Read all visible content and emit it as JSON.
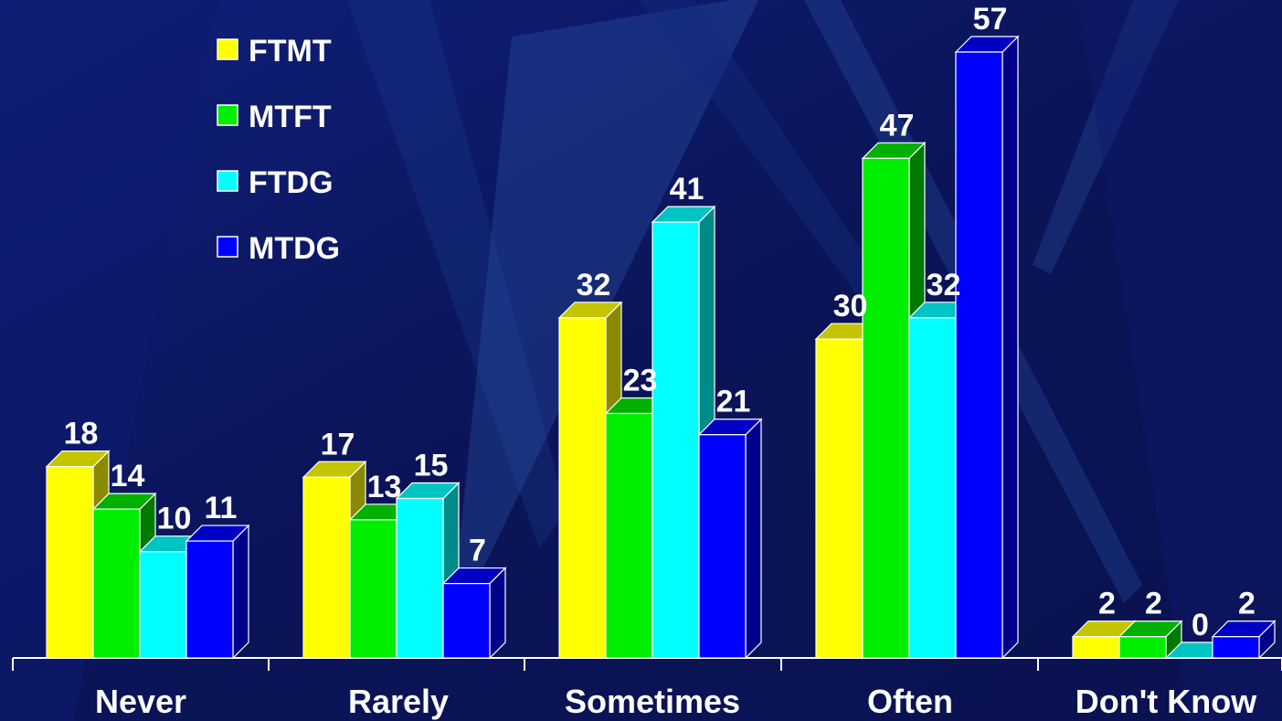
{
  "chart_data": {
    "type": "bar",
    "style": "3d-clustered-column",
    "categories": [
      "Never",
      "Rarely",
      "Sometimes",
      "Often",
      "Don't Know"
    ],
    "series": [
      {
        "name": "FTMT",
        "color": "#ffff00",
        "side_color": "#8a8a00",
        "top_color": "#c4c400",
        "values": [
          18,
          17,
          32,
          30,
          2
        ]
      },
      {
        "name": "MTFT",
        "color": "#00ee00",
        "side_color": "#007a00",
        "top_color": "#00b000",
        "values": [
          14,
          13,
          23,
          47,
          2
        ]
      },
      {
        "name": "FTDG",
        "color": "#00ffff",
        "side_color": "#008a8a",
        "top_color": "#00c4c4",
        "values": [
          10,
          15,
          41,
          32,
          0
        ]
      },
      {
        "name": "MTDG",
        "color": "#0000ff",
        "side_color": "#00008a",
        "top_color": "#0000c4",
        "values": [
          11,
          7,
          21,
          57,
          2
        ]
      }
    ],
    "ylim": [
      0,
      57
    ],
    "grid": false,
    "legend_position": "top-left",
    "data_labels": true
  }
}
